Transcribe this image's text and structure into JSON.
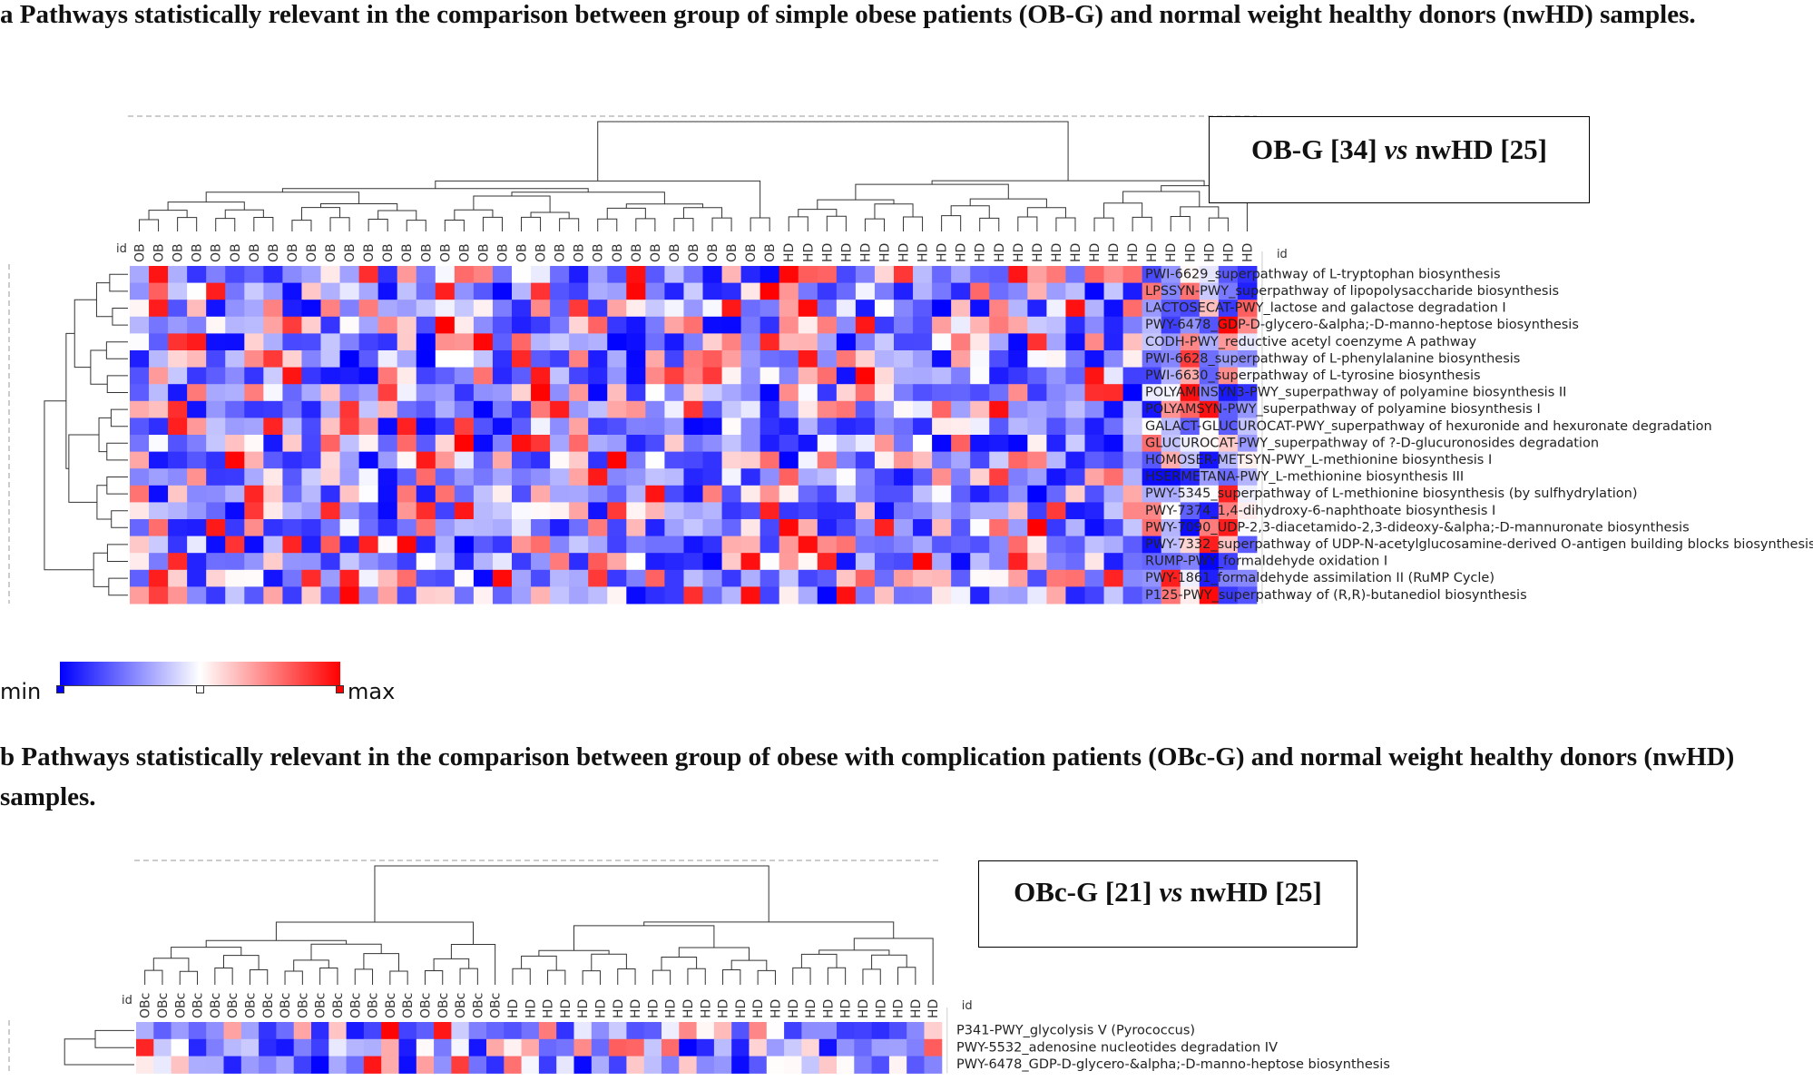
{
  "panel_a": {
    "caption": "a  Pathways statistically relevant in the comparison between  group of simple obese patients (OB-G) and normal weight healthy donors (nwHD) samples.",
    "box_label_1": "OB-G [34]",
    "box_vs": "vs",
    "box_label_2": "nwHD [25]"
  },
  "panel_b": {
    "caption": "b  Pathways statistically relevant in the comparison between  group of obese with complication patients (OBc-G) and normal weight healthy donors (nwHD) samples.",
    "box_label_1": "OBc-G [21]",
    "box_vs": "vs",
    "box_label_2": "nwHD [25]"
  },
  "colorscale": {
    "min_label": "min",
    "max_label": "max",
    "min_color": "#0000ff",
    "mid_color": "#ffffff",
    "max_color": "#ff0000"
  },
  "chart_data": [
    {
      "type": "heatmap",
      "title": "OB-G [34] vs nwHD [25]",
      "id_label": "id",
      "column_groups": [
        {
          "label": "OB",
          "count": 34
        },
        {
          "label": "HD",
          "count": 25
        }
      ],
      "rows": [
        "PWI-6629_superpathway of L-tryptophan biosynthesis",
        "LPSSYN-PWY_superpathway of lipopolysaccharide biosynthesis",
        "LACTOSECAT-PWY_lactose and galactose degradation I",
        "PWY-6478_GDP-D-glycero-&alpha;-D-manno-heptose biosynthesis",
        "CODH-PWY_reductive acetyl coenzyme A pathway",
        "PWI-6628_superpathway of L-phenylalanine biosynthesis",
        "PWI-6630_superpathway of L-tyrosine biosynthesis",
        "POLYAMINSYN3-PWY_superpathway of polyamine biosynthesis II",
        "POLYAMSYN-PWY_superpathway of polyamine biosynthesis I",
        "GALACT-GLUCUROCAT-PWY_superpathway of hexuronide and hexuronate degradation",
        "GLUCUROCAT-PWY_superpathway of ?-D-glucuronosides degradation",
        "HOMOSER-METSYN-PWY_L-methionine biosynthesis I",
        "HSERMETANA-PWY_L-methionine biosynthesis III",
        "PWY-5345_superpathway of L-methionine biosynthesis (by sulfhydrylation)",
        "PWY-7374_1,4-dihydroxy-6-naphthoate biosynthesis I",
        "PWY-7090_UDP-2,3-diacetamido-2,3-dideoxy-&alpha;-D-mannuronate biosynthesis",
        "PWY-7332_superpathway of UDP-N-acetylglucosamine-derived O-antigen building blocks biosynthesis",
        "RUMP-PWY_formaldehyde oxidation I",
        "PWY-1861_formaldehyde assimilation II (RuMP Cycle)",
        "P125-PWY_superpathway of (R,R)-butanediol biosynthesis"
      ],
      "seed": 7,
      "value_range": [
        -1,
        1
      ]
    },
    {
      "type": "heatmap",
      "title": "OBc-G [21] vs nwHD [25]",
      "id_label": "id",
      "column_groups": [
        {
          "label": "OBc",
          "count": 21
        },
        {
          "label": "HD",
          "count": 25
        }
      ],
      "rows": [
        "P341-PWY_glycolysis V (Pyrococcus)",
        "PWY-5532_adenosine nucleotides degradation IV",
        "PWY-6478_GDP-D-glycero-&alpha;-D-manno-heptose biosynthesis"
      ],
      "seed": 19,
      "value_range": [
        -1,
        1
      ]
    }
  ]
}
